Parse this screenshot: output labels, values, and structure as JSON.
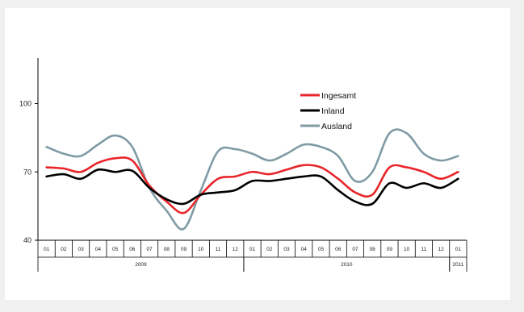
{
  "chart_data": {
    "type": "line",
    "title": "",
    "xlabel": "",
    "ylabel": "",
    "ylim": [
      40,
      120
    ],
    "yticks": [
      40,
      70,
      100
    ],
    "ytick_labels": [
      "40",
      "70",
      "100"
    ],
    "categories": [
      "01",
      "02",
      "03",
      "04",
      "05",
      "06",
      "07",
      "08",
      "09",
      "10",
      "11",
      "12",
      "01",
      "02",
      "03",
      "04",
      "05",
      "06",
      "07",
      "08",
      "09",
      "10",
      "11",
      "12",
      "01"
    ],
    "year_groups": [
      {
        "label": "2009",
        "start": 0,
        "count": 12
      },
      {
        "label": "2010",
        "start": 12,
        "count": 12
      },
      {
        "label": "2011",
        "start": 24,
        "count": 1
      }
    ],
    "legend_position": "top-right",
    "series": [
      {
        "name": "Ingesamt",
        "color": "#e8262a",
        "values": [
          72,
          71.5,
          70,
          74,
          76,
          75,
          64,
          57,
          52,
          60,
          67,
          68,
          70,
          69,
          71,
          73,
          72,
          67,
          61,
          60,
          72,
          72,
          70,
          67,
          70
        ]
      },
      {
        "name": "Inland",
        "color": "#000000",
        "values": [
          68,
          69,
          67,
          71,
          70,
          70.5,
          63,
          58,
          56,
          60,
          61,
          62,
          66,
          66,
          67,
          68,
          68,
          62,
          57,
          56,
          65,
          63,
          65,
          63,
          67
        ]
      },
      {
        "name": "Ausland",
        "color": "#7f9ba3",
        "values": [
          81,
          78,
          77,
          82,
          86,
          81,
          63,
          53,
          45,
          62,
          79,
          80,
          78,
          75,
          78,
          82,
          81,
          77,
          66,
          70,
          87,
          87,
          78,
          75,
          77
        ]
      }
    ]
  }
}
